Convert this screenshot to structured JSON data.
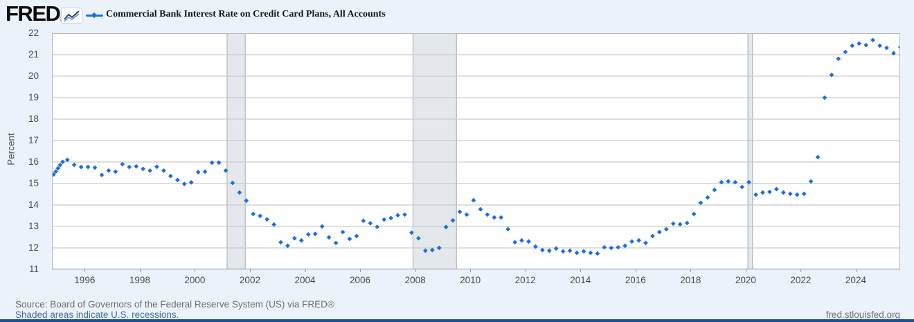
{
  "header": {
    "logo_text": "FRED",
    "logo_reg": "®",
    "title": "Commercial Bank Interest Rate on Credit Card Plans, All Accounts"
  },
  "footer": {
    "source": "Source: Board of Governors of the Federal Reserve System (US) via FRED®",
    "recession_note": "Shaded areas indicate U.S. recessions.",
    "site": "fred.stlouisfed.org"
  },
  "colors": {
    "series_blue": "#1f6fdb",
    "page_bg": "#ebf2fa",
    "plot_bg": "#ffffff",
    "grid": "#c8cbce",
    "frame": "#b3b8bd",
    "axis": "#85898e",
    "recession_fill": "#e4e8ec",
    "recession_edge": "#a5abb2",
    "footer_bar": "#1d4f8a"
  },
  "chart_data": {
    "type": "scatter",
    "title": "Commercial Bank Interest Rate on Credit Card Plans, All Accounts",
    "xlabel": "",
    "ylabel": "Percent",
    "x_range": [
      1994.81,
      2025.61
    ],
    "ylim": [
      11,
      22
    ],
    "yticks": [
      11,
      12,
      13,
      14,
      15,
      16,
      17,
      18,
      19,
      20,
      21,
      22
    ],
    "xticks": [
      1996,
      1998,
      2000,
      2002,
      2004,
      2006,
      2008,
      2010,
      2012,
      2014,
      2016,
      2018,
      2020,
      2022,
      2024
    ],
    "grid": true,
    "legend_position": "top-left-header",
    "point_color": "#1f6fdb",
    "recession_fill": "#e4e8ec",
    "recession_edge": "#a5abb2",
    "recessions": [
      [
        2001.17,
        2001.83
      ],
      [
        2007.92,
        2009.5
      ],
      [
        2020.08,
        2020.25
      ]
    ],
    "points": [
      [
        1994.87,
        15.42
      ],
      [
        1994.95,
        15.56
      ],
      [
        1995.03,
        15.71
      ],
      [
        1995.11,
        15.86
      ],
      [
        1995.2,
        16.01
      ],
      [
        1995.37,
        16.1
      ],
      [
        1995.62,
        15.87
      ],
      [
        1995.87,
        15.77
      ],
      [
        1996.12,
        15.77
      ],
      [
        1996.37,
        15.74
      ],
      [
        1996.62,
        15.4
      ],
      [
        1996.87,
        15.6
      ],
      [
        1997.12,
        15.55
      ],
      [
        1997.37,
        15.9
      ],
      [
        1997.62,
        15.77
      ],
      [
        1997.87,
        15.8
      ],
      [
        1998.12,
        15.68
      ],
      [
        1998.37,
        15.6
      ],
      [
        1998.62,
        15.78
      ],
      [
        1998.87,
        15.6
      ],
      [
        1999.12,
        15.35
      ],
      [
        1999.37,
        15.16
      ],
      [
        1999.62,
        14.98
      ],
      [
        1999.87,
        15.05
      ],
      [
        2000.12,
        15.53
      ],
      [
        2000.37,
        15.55
      ],
      [
        2000.62,
        15.97
      ],
      [
        2000.87,
        15.97
      ],
      [
        2001.12,
        15.6
      ],
      [
        2001.37,
        15.03
      ],
      [
        2001.62,
        14.58
      ],
      [
        2001.87,
        14.2
      ],
      [
        2002.12,
        13.58
      ],
      [
        2002.37,
        13.49
      ],
      [
        2002.62,
        13.33
      ],
      [
        2002.87,
        13.09
      ],
      [
        2003.12,
        12.26
      ],
      [
        2003.37,
        12.1
      ],
      [
        2003.62,
        12.45
      ],
      [
        2003.87,
        12.35
      ],
      [
        2004.12,
        12.63
      ],
      [
        2004.37,
        12.65
      ],
      [
        2004.62,
        13.0
      ],
      [
        2004.87,
        12.49
      ],
      [
        2005.12,
        12.23
      ],
      [
        2005.37,
        12.74
      ],
      [
        2005.62,
        12.42
      ],
      [
        2005.87,
        12.55
      ],
      [
        2006.12,
        13.26
      ],
      [
        2006.37,
        13.15
      ],
      [
        2006.62,
        12.98
      ],
      [
        2006.87,
        13.32
      ],
      [
        2007.12,
        13.39
      ],
      [
        2007.37,
        13.52
      ],
      [
        2007.62,
        13.55
      ],
      [
        2007.87,
        12.71
      ],
      [
        2008.12,
        12.45
      ],
      [
        2008.37,
        11.87
      ],
      [
        2008.62,
        11.9
      ],
      [
        2008.87,
        12.0
      ],
      [
        2009.12,
        12.97
      ],
      [
        2009.37,
        13.28
      ],
      [
        2009.62,
        13.68
      ],
      [
        2009.87,
        13.55
      ],
      [
        2010.12,
        14.22
      ],
      [
        2010.37,
        13.8
      ],
      [
        2010.62,
        13.55
      ],
      [
        2010.87,
        13.42
      ],
      [
        2011.12,
        13.42
      ],
      [
        2011.37,
        12.87
      ],
      [
        2011.62,
        12.26
      ],
      [
        2011.87,
        12.35
      ],
      [
        2012.12,
        12.3
      ],
      [
        2012.37,
        12.06
      ],
      [
        2012.62,
        11.9
      ],
      [
        2012.87,
        11.87
      ],
      [
        2013.12,
        11.97
      ],
      [
        2013.37,
        11.84
      ],
      [
        2013.62,
        11.87
      ],
      [
        2013.87,
        11.77
      ],
      [
        2014.12,
        11.84
      ],
      [
        2014.37,
        11.77
      ],
      [
        2014.62,
        11.74
      ],
      [
        2014.87,
        12.03
      ],
      [
        2015.12,
        12.0
      ],
      [
        2015.37,
        12.03
      ],
      [
        2015.62,
        12.1
      ],
      [
        2015.87,
        12.3
      ],
      [
        2016.12,
        12.35
      ],
      [
        2016.37,
        12.23
      ],
      [
        2016.62,
        12.55
      ],
      [
        2016.87,
        12.74
      ],
      [
        2017.12,
        12.87
      ],
      [
        2017.37,
        13.13
      ],
      [
        2017.62,
        13.1
      ],
      [
        2017.87,
        13.16
      ],
      [
        2018.12,
        13.58
      ],
      [
        2018.37,
        14.1
      ],
      [
        2018.62,
        14.35
      ],
      [
        2018.87,
        14.7
      ],
      [
        2019.12,
        15.06
      ],
      [
        2019.37,
        15.1
      ],
      [
        2019.62,
        15.06
      ],
      [
        2019.87,
        14.84
      ],
      [
        2020.12,
        15.06
      ],
      [
        2020.37,
        14.48
      ],
      [
        2020.62,
        14.58
      ],
      [
        2020.87,
        14.61
      ],
      [
        2021.12,
        14.74
      ],
      [
        2021.37,
        14.58
      ],
      [
        2021.62,
        14.52
      ],
      [
        2021.87,
        14.48
      ],
      [
        2022.12,
        14.52
      ],
      [
        2022.37,
        15.1
      ],
      [
        2022.62,
        16.23
      ],
      [
        2022.87,
        19.0
      ],
      [
        2023.12,
        20.06
      ],
      [
        2023.37,
        20.81
      ],
      [
        2023.62,
        21.13
      ],
      [
        2023.87,
        21.42
      ],
      [
        2024.12,
        21.52
      ],
      [
        2024.37,
        21.45
      ],
      [
        2024.62,
        21.68
      ],
      [
        2024.87,
        21.42
      ],
      [
        2025.12,
        21.32
      ],
      [
        2025.37,
        21.07
      ],
      [
        2025.62,
        21.35
      ]
    ]
  }
}
